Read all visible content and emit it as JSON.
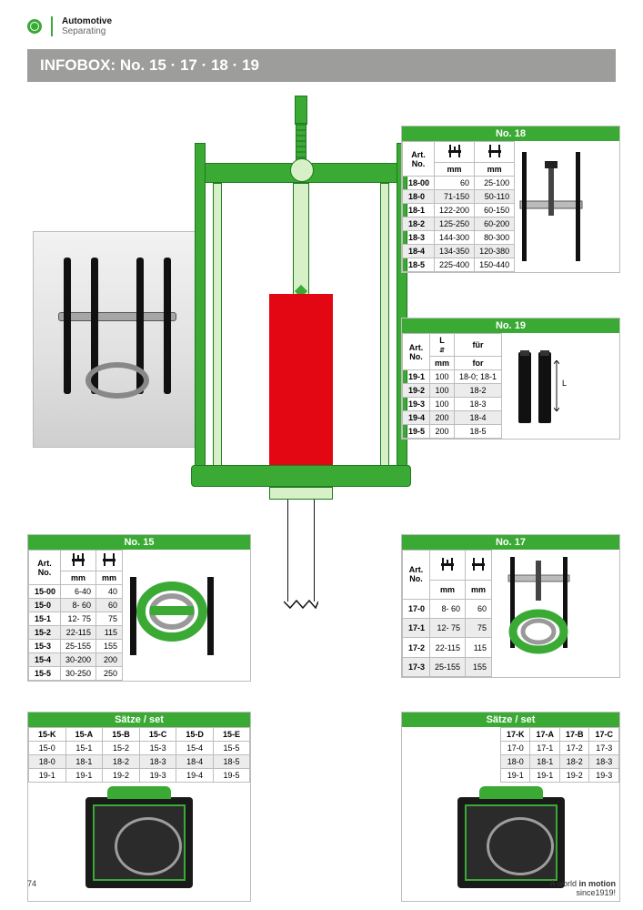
{
  "colors": {
    "brand_green": "#3aaa35",
    "brand_green_dark": "#1e7a1e",
    "red": "#e30613",
    "grey_header_bar": "#9d9d9c",
    "table_border": "#bdbdbd",
    "row_alt": "#ececec",
    "photo_bg_top": "#f2f2f2",
    "photo_bg_bottom": "#cfcfcf",
    "black": "#111111",
    "white": "#ffffff"
  },
  "header": {
    "category": "Automotive",
    "subcategory": "Separating"
  },
  "infobox_title": "INFOBOX: No. 15 · 17 · 18 · 19",
  "table18": {
    "title": "No. 18",
    "cols": [
      "Art.\nNo.",
      "mm",
      "mm"
    ],
    "rows": [
      [
        "18-00",
        "60",
        "25-100"
      ],
      [
        "18-0",
        "71-150",
        "50-110"
      ],
      [
        "18-1",
        "122-200",
        "60-150"
      ],
      [
        "18-2",
        "125-250",
        "60-200"
      ],
      [
        "18-3",
        "144-300",
        "80-300"
      ],
      [
        "18-4",
        "134-350",
        "120-380"
      ],
      [
        "18-5",
        "225-400",
        "150-440"
      ]
    ]
  },
  "table19": {
    "title": "No. 19",
    "head_fur": "für",
    "head_for": "for",
    "col_art": "Art.\nNo.",
    "col_L": "L\nmm",
    "rows": [
      [
        "19-1",
        "100",
        "18-0; 18-1"
      ],
      [
        "19-2",
        "100",
        "18-2"
      ],
      [
        "19-3",
        "100",
        "18-3"
      ],
      [
        "19-4",
        "200",
        "18-4"
      ],
      [
        "19-5",
        "200",
        "18-5"
      ]
    ]
  },
  "table15": {
    "title": "No. 15",
    "cols": [
      "Art.\nNo.",
      "mm",
      "mm"
    ],
    "rows": [
      [
        "15-00",
        "6-40",
        "40"
      ],
      [
        "15-0",
        "8- 60",
        "60"
      ],
      [
        "15-1",
        "12- 75",
        "75"
      ],
      [
        "15-2",
        "22-115",
        "115"
      ],
      [
        "15-3",
        "25-155",
        "155"
      ],
      [
        "15-4",
        "30-200",
        "200"
      ],
      [
        "15-5",
        "30-250",
        "250"
      ]
    ]
  },
  "table17": {
    "title": "No. 17",
    "cols": [
      "Art.\nNo.",
      "mm",
      "mm"
    ],
    "rows": [
      [
        "17-0",
        "8- 60",
        "60"
      ],
      [
        "17-1",
        "12- 75",
        "75"
      ],
      [
        "17-2",
        "22-115",
        "115"
      ],
      [
        "17-3",
        "25-155",
        "155"
      ]
    ]
  },
  "sets15": {
    "title": "Sätze / set",
    "cols": [
      "15-K",
      "15-A",
      "15-B",
      "15-C",
      "15-D",
      "15-E"
    ],
    "rows": [
      [
        "15-0",
        "15-1",
        "15-2",
        "15-3",
        "15-4",
        "15-5"
      ],
      [
        "18-0",
        "18-1",
        "18-2",
        "18-3",
        "18-4",
        "18-5"
      ],
      [
        "19-1",
        "19-1",
        "19-2",
        "19-3",
        "19-4",
        "19-5"
      ]
    ]
  },
  "sets17": {
    "title": "Sätze / set",
    "cols": [
      "17-K",
      "17-A",
      "17-B",
      "17-C"
    ],
    "rows": [
      [
        "17-0",
        "17-1",
        "17-2",
        "17-3"
      ],
      [
        "18-0",
        "18-1",
        "18-2",
        "18-3"
      ],
      [
        "19-1",
        "19-1",
        "19-2",
        "19-3"
      ]
    ]
  },
  "label_L": "L",
  "footer": {
    "page": "74",
    "tag_bold": "in motion",
    "tag_pre": "A world ",
    "tag_since": "since1919!"
  }
}
